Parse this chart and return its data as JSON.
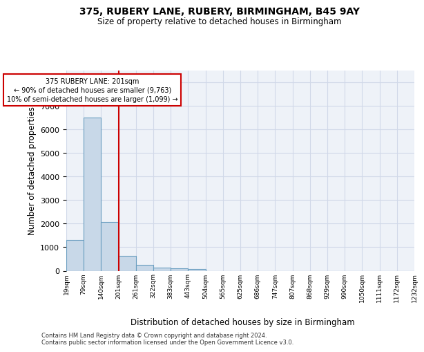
{
  "title1": "375, RUBERY LANE, RUBERY, BIRMINGHAM, B45 9AY",
  "title2": "Size of property relative to detached houses in Birmingham",
  "xlabel": "Distribution of detached houses by size in Birmingham",
  "ylabel": "Number of detached properties",
  "bar_values": [
    1300,
    6500,
    2080,
    630,
    250,
    140,
    90,
    70,
    0,
    0,
    0,
    0,
    0,
    0,
    0,
    0,
    0,
    0,
    0,
    0
  ],
  "bin_labels": [
    "19sqm",
    "79sqm",
    "140sqm",
    "201sqm",
    "261sqm",
    "322sqm",
    "383sqm",
    "443sqm",
    "504sqm",
    "565sqm",
    "625sqm",
    "686sqm",
    "747sqm",
    "807sqm",
    "868sqm",
    "929sqm",
    "990sqm",
    "1050sqm",
    "1111sqm",
    "1172sqm",
    "1232sqm"
  ],
  "bar_color": "#c8d8e8",
  "bar_edge_color": "#6a9ec0",
  "annotation_title": "375 RUBERY LANE: 201sqm",
  "annotation_line1": "← 90% of detached houses are smaller (9,763)",
  "annotation_line2": "10% of semi-detached houses are larger (1,099) →",
  "vline_color": "#cc0000",
  "annotation_box_color": "#cc0000",
  "ylim_max": 8500,
  "yticks": [
    0,
    1000,
    2000,
    3000,
    4000,
    5000,
    6000,
    7000,
    8000
  ],
  "grid_color": "#d0d8e8",
  "bg_color": "#eef2f8",
  "footer1": "Contains HM Land Registry data © Crown copyright and database right 2024.",
  "footer2": "Contains public sector information licensed under the Open Government Licence v3.0."
}
